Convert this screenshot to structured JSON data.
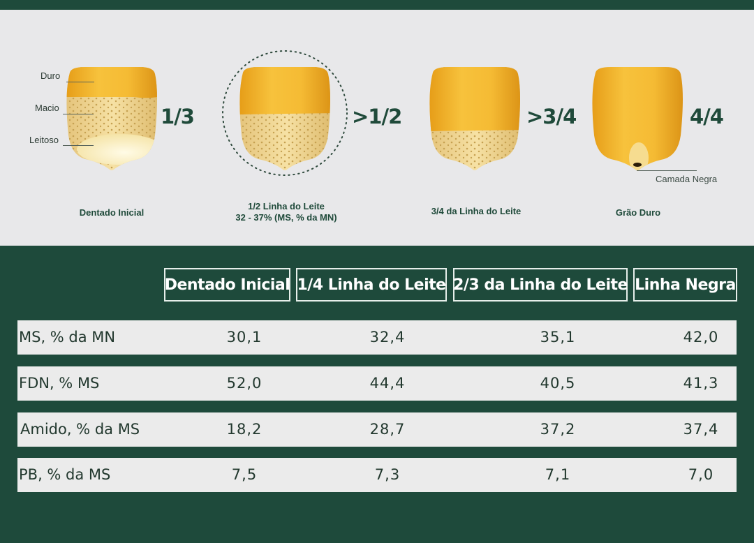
{
  "diagram": {
    "stages": [
      {
        "fraction": "1/3",
        "label_lines": [
          "Dentado Inicial"
        ]
      },
      {
        "fraction": ">1/2",
        "label_lines": [
          "1/2 Linha do Leite",
          "32 - 37% (MS, % da MN)"
        ]
      },
      {
        "fraction": ">3/4",
        "label_lines": [
          "3/4 da Linha do Leite"
        ]
      },
      {
        "fraction": "4/4",
        "label_lines": [
          "Grão Duro"
        ]
      }
    ],
    "parts": [
      "Duro",
      "Macio",
      "Leitoso"
    ],
    "camada_label": "Camada Negra",
    "colors": {
      "hard": "#f0b52c",
      "soft": "#f3dc9a",
      "milky": "#fbf3cf",
      "background": "#e8e8ea",
      "green": "#1e4a3b"
    }
  },
  "table": {
    "columns": [
      "Dentado Inicial",
      "1/4 Linha do Leite",
      "2/3 da Linha do Leite",
      "Linha Negra"
    ],
    "rows": [
      {
        "label": "MS, % da MN",
        "values": [
          "30,1",
          "32,4",
          "35,1",
          "42,0"
        ]
      },
      {
        "label": "FDN, % MS",
        "values": [
          "52,0",
          "44,4",
          "40,5",
          "41,3"
        ]
      },
      {
        "label": "Amido, % da MS",
        "values": [
          "18,2",
          "28,7",
          "37,2",
          "37,4"
        ]
      },
      {
        "label": "PB, % da MS",
        "values": [
          "7,5",
          "7,3",
          "7,1",
          "7,0"
        ]
      }
    ]
  }
}
